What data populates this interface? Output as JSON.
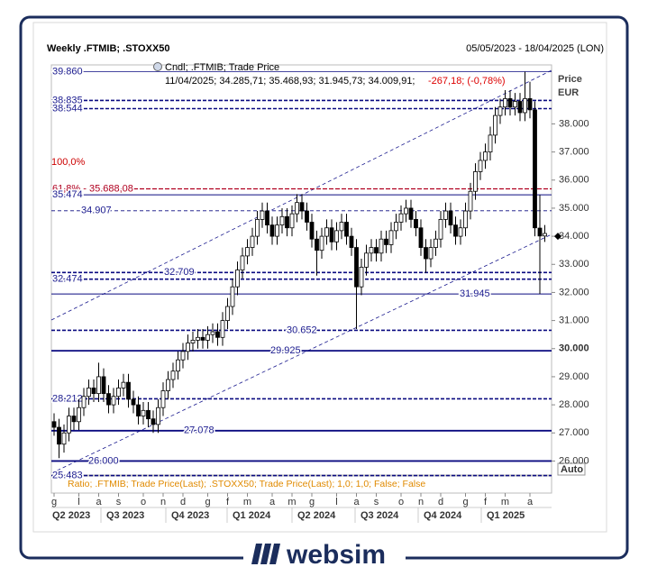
{
  "chart_data": {
    "type": "candlestick",
    "title": "Weekly .FTMIB; .STOXX50",
    "date_range": "05/05/2023 - 18/04/2025 (LON)",
    "legend": {
      "name": "Cndl; .FTMIB; Trade Price",
      "ohlc": "11/04/2025; 34.285,71; 35.468,93; 31.945,73; 34.009,91;",
      "change": "-267,18; (-0,78%)"
    },
    "y_label": "Price",
    "y_unit": "EUR",
    "fib_top_label": "100,0%",
    "ratio_label": "Ratio; .FTMIB; Trade Price(Last); .STOXX50; Trade Price(Last); 1,0; 1,0; False; False",
    "auto_label": "Auto",
    "brand": "websim",
    "quarters": [
      "Q2 2023",
      "Q3 2023",
      "Q4 2023",
      "Q1 2024",
      "Q2 2024",
      "Q3 2024",
      "Q4 2024",
      "Q1 2025"
    ],
    "categories": [
      "g",
      null,
      null,
      null,
      null,
      "l",
      null,
      null,
      null,
      "a",
      null,
      null,
      null,
      "s",
      null,
      null,
      null,
      null,
      "o",
      null,
      null,
      null,
      "n",
      null,
      null,
      null,
      "d",
      null,
      null,
      null,
      null,
      "g",
      null,
      null,
      null,
      "f",
      null,
      null,
      null,
      "m",
      null,
      null,
      null,
      null,
      "a",
      null,
      null,
      null,
      "m",
      null,
      null,
      null,
      "g",
      null,
      null,
      null,
      null,
      "l",
      null,
      null,
      null,
      "a",
      null,
      null,
      null,
      "s",
      null,
      null,
      null,
      null,
      "o",
      null,
      null,
      null,
      "n",
      null,
      null,
      null,
      "d",
      null,
      null,
      null,
      null,
      "g",
      null,
      null,
      null,
      "f",
      null,
      null,
      null,
      "m",
      null,
      null,
      null,
      null,
      "a",
      null,
      null,
      null
    ],
    "open": [
      27.4,
      27.2,
      26.6,
      27.0,
      27.6,
      27.4,
      27.9,
      28.3,
      28.6,
      28.4,
      29.0,
      28.4,
      28.0,
      28.3,
      28.6,
      28.8,
      28.2,
      28.0,
      27.6,
      27.8,
      27.5,
      27.3,
      27.9,
      28.5,
      28.9,
      29.2,
      29.6,
      29.9,
      30.2,
      30.3,
      30.4,
      30.3,
      30.5,
      30.6,
      30.4,
      31.0,
      31.5,
      32.2,
      32.8,
      33.3,
      33.6,
      34.0,
      34.6,
      34.9,
      34.4,
      34.0,
      34.4,
      34.7,
      34.3,
      34.8,
      35.2,
      34.9,
      34.5,
      33.9,
      33.5,
      34.0,
      34.3,
      33.8,
      34.2,
      34.5,
      34.0,
      33.6,
      32.2,
      32.9,
      33.4,
      33.6,
      33.4,
      33.9,
      33.7,
      34.2,
      34.5,
      34.8,
      35.0,
      34.6,
      34.3,
      33.6,
      33.2,
      33.6,
      33.9,
      34.6,
      34.9,
      34.4,
      34.0,
      34.3,
      34.9,
      35.6,
      36.3,
      36.7,
      37.0,
      37.6,
      38.3,
      38.6,
      38.9,
      38.6,
      38.8,
      38.4,
      38.9,
      38.5,
      34.29,
      34.01
    ],
    "high": [
      27.7,
      27.5,
      27.3,
      27.9,
      27.9,
      28.2,
      28.6,
      28.9,
      28.9,
      29.5,
      29.3,
      28.7,
      28.6,
      28.9,
      29.1,
      29.1,
      28.5,
      28.3,
      28.1,
      28.1,
      27.8,
      28.2,
      28.8,
      29.2,
      29.5,
      29.9,
      30.2,
      30.5,
      30.6,
      30.7,
      30.7,
      30.8,
      30.9,
      30.9,
      31.3,
      31.8,
      32.5,
      33.1,
      33.6,
      33.9,
      34.3,
      34.9,
      35.2,
      35.2,
      34.7,
      34.7,
      35.0,
      35.0,
      35.1,
      35.5,
      35.5,
      35.2,
      34.8,
      34.2,
      34.3,
      34.6,
      34.6,
      34.5,
      34.8,
      34.8,
      34.3,
      33.9,
      33.2,
      33.7,
      33.9,
      33.9,
      34.2,
      34.2,
      34.5,
      34.8,
      35.1,
      35.3,
      35.3,
      34.9,
      34.6,
      33.9,
      33.9,
      34.2,
      34.9,
      35.2,
      35.2,
      34.7,
      34.6,
      35.2,
      35.9,
      36.6,
      37.0,
      37.3,
      37.9,
      38.6,
      38.9,
      39.2,
      39.2,
      39.1,
      39.1,
      39.86,
      39.5,
      38.8,
      35.47,
      34.4
    ],
    "low": [
      26.9,
      26.1,
      26.3,
      26.7,
      27.1,
      27.1,
      27.6,
      28.0,
      28.1,
      28.1,
      28.1,
      27.7,
      27.7,
      28.0,
      28.3,
      27.9,
      27.7,
      27.3,
      27.3,
      27.2,
      27.0,
      27.0,
      27.6,
      28.2,
      28.6,
      28.9,
      29.3,
      29.6,
      29.9,
      30.0,
      30.0,
      30.0,
      30.2,
      30.1,
      30.1,
      30.7,
      31.2,
      31.9,
      32.5,
      33.0,
      33.3,
      33.7,
      34.3,
      34.1,
      33.7,
      33.7,
      34.1,
      34.0,
      34.0,
      34.5,
      34.6,
      34.2,
      33.6,
      32.6,
      33.2,
      33.7,
      33.5,
      33.5,
      33.9,
      33.7,
      33.3,
      30.7,
      31.9,
      32.6,
      33.1,
      33.1,
      33.1,
      33.4,
      33.4,
      33.9,
      34.2,
      34.5,
      34.3,
      34.0,
      33.3,
      32.7,
      32.9,
      33.3,
      33.6,
      34.3,
      34.1,
      33.7,
      33.7,
      34.0,
      34.6,
      35.3,
      36.0,
      36.4,
      36.7,
      37.3,
      38.0,
      38.3,
      38.3,
      38.3,
      38.1,
      38.1,
      38.2,
      34.0,
      31.95,
      33.8
    ],
    "close": [
      27.2,
      26.6,
      27.0,
      27.6,
      27.4,
      27.9,
      28.3,
      28.6,
      28.4,
      29.0,
      28.4,
      28.0,
      28.3,
      28.6,
      28.8,
      28.2,
      28.0,
      27.6,
      27.8,
      27.5,
      27.3,
      27.9,
      28.5,
      28.9,
      29.2,
      29.6,
      29.9,
      30.2,
      30.3,
      30.4,
      30.3,
      30.5,
      30.6,
      30.4,
      31.0,
      31.5,
      32.2,
      32.8,
      33.3,
      33.6,
      34.0,
      34.6,
      34.9,
      34.4,
      34.0,
      34.4,
      34.7,
      34.3,
      34.8,
      35.2,
      34.9,
      34.5,
      33.9,
      33.5,
      34.0,
      34.3,
      33.8,
      34.2,
      34.5,
      34.0,
      33.6,
      32.2,
      32.9,
      33.4,
      33.6,
      33.4,
      33.9,
      33.7,
      34.2,
      34.5,
      34.8,
      35.0,
      34.6,
      34.3,
      33.6,
      33.2,
      33.6,
      33.9,
      34.6,
      34.9,
      34.4,
      34.0,
      34.3,
      34.9,
      35.6,
      36.3,
      36.7,
      37.0,
      37.6,
      38.3,
      38.6,
      38.9,
      38.6,
      38.8,
      38.4,
      38.9,
      38.5,
      34.3,
      34.01,
      34.1
    ],
    "ylim": [
      25.5,
      40.1
    ],
    "yticks": [
      {
        "value": 26,
        "label": "26.000"
      },
      {
        "value": 27,
        "label": "27.000"
      },
      {
        "value": 28,
        "label": "28.000"
      },
      {
        "value": 29,
        "label": "29.000"
      },
      {
        "value": 30,
        "label": "30.000"
      },
      {
        "value": 31,
        "label": "31.000"
      },
      {
        "value": 32,
        "label": "32.000"
      },
      {
        "value": 33,
        "label": "33.000"
      },
      {
        "value": 34,
        "label": "34.000"
      },
      {
        "value": 35,
        "label": "35.000"
      },
      {
        "value": 36,
        "label": "36.000"
      },
      {
        "value": 37,
        "label": "37.000"
      },
      {
        "value": 38,
        "label": "38.000"
      }
    ],
    "levels": [
      {
        "value": 39.86,
        "label": "39.860",
        "style": "solid"
      },
      {
        "value": 38.835,
        "label": "38.835",
        "style": "dashed"
      },
      {
        "value": 38.544,
        "label": "38.544",
        "style": "dashed"
      },
      {
        "value": 35.688,
        "label": "61,8% - 35.688,08",
        "style": "fib"
      },
      {
        "value": 35.474,
        "label": "35.474",
        "style": "thin"
      },
      {
        "value": 34.907,
        "label": "34.907",
        "style": "thindash"
      },
      {
        "value": 32.709,
        "label": "32.709",
        "style": "dashed"
      },
      {
        "value": 32.474,
        "label": "32.474",
        "style": "dashed"
      },
      {
        "value": 31.945,
        "label": "31.945",
        "style": "thin"
      },
      {
        "value": 30.652,
        "label": "30.652",
        "style": "dashed"
      },
      {
        "value": 29.925,
        "label": "29.925",
        "style": "solid"
      },
      {
        "value": 28.212,
        "label": "28.212",
        "style": "dashed"
      },
      {
        "value": 27.078,
        "label": "27.078",
        "style": "solid"
      },
      {
        "value": 26.0,
        "label": "26.000",
        "style": "solid"
      },
      {
        "value": 25.483,
        "label": "25.483",
        "style": "dashed"
      }
    ]
  }
}
